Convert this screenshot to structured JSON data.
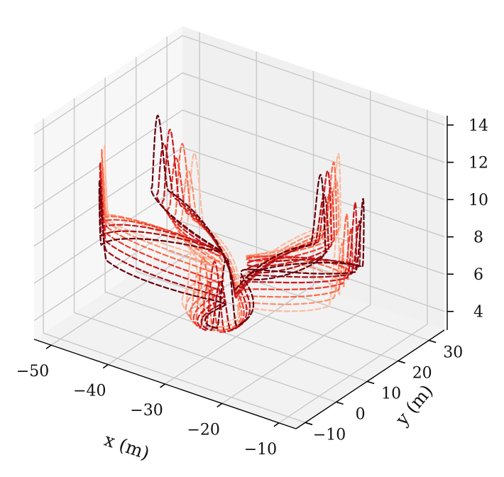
{
  "chart_data": {
    "type": "line3d",
    "xlabel": "x (m)",
    "ylabel": "y (m)",
    "zlabel": "",
    "xlim": [
      -53,
      -7
    ],
    "ylim": [
      -13,
      35
    ],
    "zlim": [
      3,
      14.5
    ],
    "xticks": [
      -50,
      -40,
      -30,
      -20,
      -10
    ],
    "yticks": [
      -10,
      0,
      10,
      20,
      30
    ],
    "zticks": [
      4,
      6,
      8,
      10,
      12,
      14
    ],
    "grid": true,
    "line_style": "dashed",
    "palette": [
      "#fcbba1",
      "#fc9272",
      "#fb6a4a",
      "#ef3b2c",
      "#cb181d",
      "#a50f15",
      "#67000d"
    ],
    "path": {
      "center": [
        -31,
        11
      ],
      "loops": 5,
      "radius_x": 21,
      "radius_y": 20,
      "altitude_base": 6.5,
      "altitude_swing": 1.3
    }
  }
}
